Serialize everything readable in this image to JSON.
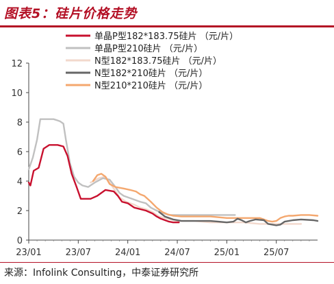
{
  "figure_title": "图表5：硅片价格走势",
  "source": "来源：Infolink Consulting，中泰证券研究所",
  "chart_data": {
    "type": "line",
    "title": "",
    "xlabel": "",
    "ylabel": "",
    "y_ticks": [
      "0",
      "2",
      "4",
      "6",
      "8",
      "10",
      "12"
    ],
    "ylim": [
      0,
      12
    ],
    "x_ticks": [
      "23/01",
      "23/07",
      "24/01",
      "24/07",
      "25/01",
      "25/07"
    ],
    "xlim": [
      0,
      35
    ],
    "x_units": "months since 23/01",
    "legend_position": "top-right",
    "grid": false,
    "series": [
      {
        "name": "单晶P型182*183.75硅片 （元/片）",
        "color": "#c8102e",
        "width": 2.4,
        "points": [
          [
            0,
            3.9
          ],
          [
            0.2,
            3.7
          ],
          [
            0.6,
            4.7
          ],
          [
            1.2,
            4.9
          ],
          [
            1.8,
            6.2
          ],
          [
            2.5,
            6.45
          ],
          [
            3.5,
            6.45
          ],
          [
            4.2,
            6.35
          ],
          [
            4.7,
            5.7
          ],
          [
            5.2,
            4.5
          ],
          [
            5.8,
            3.6
          ],
          [
            6.3,
            2.8
          ],
          [
            7.5,
            2.8
          ],
          [
            8.3,
            3.0
          ],
          [
            9.3,
            3.4
          ],
          [
            10.3,
            3.3
          ],
          [
            10.8,
            3.0
          ],
          [
            11.3,
            2.6
          ],
          [
            12.0,
            2.5
          ],
          [
            12.8,
            2.2
          ],
          [
            13.5,
            2.1
          ],
          [
            14.2,
            2.0
          ],
          [
            15.0,
            1.8
          ],
          [
            15.5,
            1.6
          ],
          [
            16.0,
            1.45
          ],
          [
            17.0,
            1.25
          ],
          [
            17.5,
            1.2
          ],
          [
            18.2,
            1.2
          ]
        ]
      },
      {
        "name": "单晶P型210硅片 （元/片）",
        "color": "#c0c0c0",
        "width": 2.4,
        "points": [
          [
            0,
            4.8
          ],
          [
            0.5,
            5.6
          ],
          [
            1.0,
            6.8
          ],
          [
            1.4,
            8.2
          ],
          [
            3.0,
            8.2
          ],
          [
            3.3,
            8.15
          ],
          [
            3.8,
            8.05
          ],
          [
            4.2,
            7.9
          ],
          [
            4.5,
            6.8
          ],
          [
            5.0,
            5.2
          ],
          [
            5.5,
            4.3
          ],
          [
            6.0,
            3.9
          ],
          [
            6.5,
            3.7
          ],
          [
            7.2,
            3.6
          ],
          [
            8.0,
            3.9
          ],
          [
            9.0,
            4.2
          ],
          [
            9.8,
            4.1
          ],
          [
            10.5,
            3.6
          ],
          [
            11.0,
            3.2
          ],
          [
            11.5,
            3.0
          ],
          [
            12.5,
            2.8
          ],
          [
            13.5,
            2.6
          ],
          [
            14.2,
            2.5
          ],
          [
            14.8,
            2.2
          ],
          [
            15.5,
            2.0
          ],
          [
            16.2,
            1.85
          ],
          [
            17.0,
            1.7
          ],
          [
            18.0,
            1.7
          ],
          [
            20.0,
            1.7
          ],
          [
            22.0,
            1.7
          ],
          [
            24.0,
            1.7
          ],
          [
            25.0,
            1.7
          ]
        ]
      },
      {
        "name": "N型182*183.75硅片 （元/片）",
        "color": "#f2d8cc",
        "width": 2.4,
        "points": [
          [
            7.5,
            3.9
          ],
          [
            8.5,
            4.2
          ],
          [
            9.3,
            4.3
          ],
          [
            10.3,
            3.5
          ],
          [
            11.0,
            2.9
          ],
          [
            11.8,
            2.6
          ],
          [
            12.8,
            2.4
          ],
          [
            13.5,
            2.2
          ],
          [
            14.2,
            2.1
          ],
          [
            15.0,
            1.9
          ],
          [
            15.8,
            1.6
          ],
          [
            16.5,
            1.5
          ],
          [
            17.2,
            1.4
          ],
          [
            18.0,
            1.3
          ],
          [
            19.0,
            1.3
          ],
          [
            20.0,
            1.3
          ],
          [
            21.0,
            1.25
          ],
          [
            22.0,
            1.2
          ],
          [
            23.0,
            1.2
          ],
          [
            24.0,
            1.2
          ],
          [
            25.0,
            1.2
          ],
          [
            26.0,
            1.2
          ],
          [
            27.0,
            1.15
          ],
          [
            28.0,
            1.1
          ],
          [
            29.0,
            1.1
          ],
          [
            30.0,
            1.1
          ],
          [
            31.0,
            1.1
          ],
          [
            32.0,
            1.1
          ],
          [
            33.0,
            1.1
          ]
        ]
      },
      {
        "name": "N型182*210硅片 （元/片）",
        "color": "#666666",
        "width": 2.4,
        "points": [
          [
            15.8,
            1.9
          ],
          [
            16.5,
            1.6
          ],
          [
            17.5,
            1.4
          ],
          [
            18.5,
            1.3
          ],
          [
            20.0,
            1.3
          ],
          [
            22.0,
            1.3
          ],
          [
            23.0,
            1.25
          ],
          [
            24.0,
            1.2
          ],
          [
            24.8,
            1.25
          ],
          [
            25.3,
            1.45
          ],
          [
            25.8,
            1.35
          ],
          [
            26.3,
            1.2
          ],
          [
            26.8,
            1.3
          ],
          [
            27.5,
            1.4
          ],
          [
            28.5,
            1.35
          ],
          [
            29.0,
            1.1
          ],
          [
            29.5,
            1.05
          ],
          [
            30.0,
            1.0
          ],
          [
            30.5,
            1.05
          ],
          [
            31.0,
            1.25
          ],
          [
            31.5,
            1.3
          ],
          [
            32.0,
            1.35
          ],
          [
            33.0,
            1.4
          ],
          [
            34.5,
            1.35
          ],
          [
            35.0,
            1.3
          ]
        ]
      },
      {
        "name": "N型210*210硅片 （元/片）",
        "color": "#f4a76e",
        "width": 2.4,
        "points": [
          [
            7.8,
            4.0
          ],
          [
            8.3,
            4.4
          ],
          [
            8.8,
            4.5
          ],
          [
            9.3,
            4.3
          ],
          [
            9.8,
            3.8
          ],
          [
            10.5,
            3.6
          ],
          [
            11.5,
            3.5
          ],
          [
            12.3,
            3.4
          ],
          [
            13.0,
            3.3
          ],
          [
            13.5,
            3.1
          ],
          [
            14.0,
            3.0
          ],
          [
            14.8,
            2.6
          ],
          [
            15.5,
            2.2
          ],
          [
            16.2,
            1.9
          ],
          [
            16.8,
            1.75
          ],
          [
            17.5,
            1.65
          ],
          [
            18.5,
            1.6
          ],
          [
            20.0,
            1.6
          ],
          [
            22.0,
            1.6
          ],
          [
            23.0,
            1.55
          ],
          [
            24.0,
            1.5
          ],
          [
            25.0,
            1.5
          ],
          [
            26.0,
            1.5
          ],
          [
            27.0,
            1.5
          ],
          [
            28.0,
            1.5
          ],
          [
            28.5,
            1.4
          ],
          [
            29.0,
            1.3
          ],
          [
            29.5,
            1.25
          ],
          [
            30.0,
            1.3
          ],
          [
            30.5,
            1.5
          ],
          [
            31.0,
            1.6
          ],
          [
            31.5,
            1.65
          ],
          [
            32.0,
            1.65
          ],
          [
            33.0,
            1.7
          ],
          [
            34.0,
            1.7
          ],
          [
            35.0,
            1.65
          ]
        ]
      }
    ]
  }
}
